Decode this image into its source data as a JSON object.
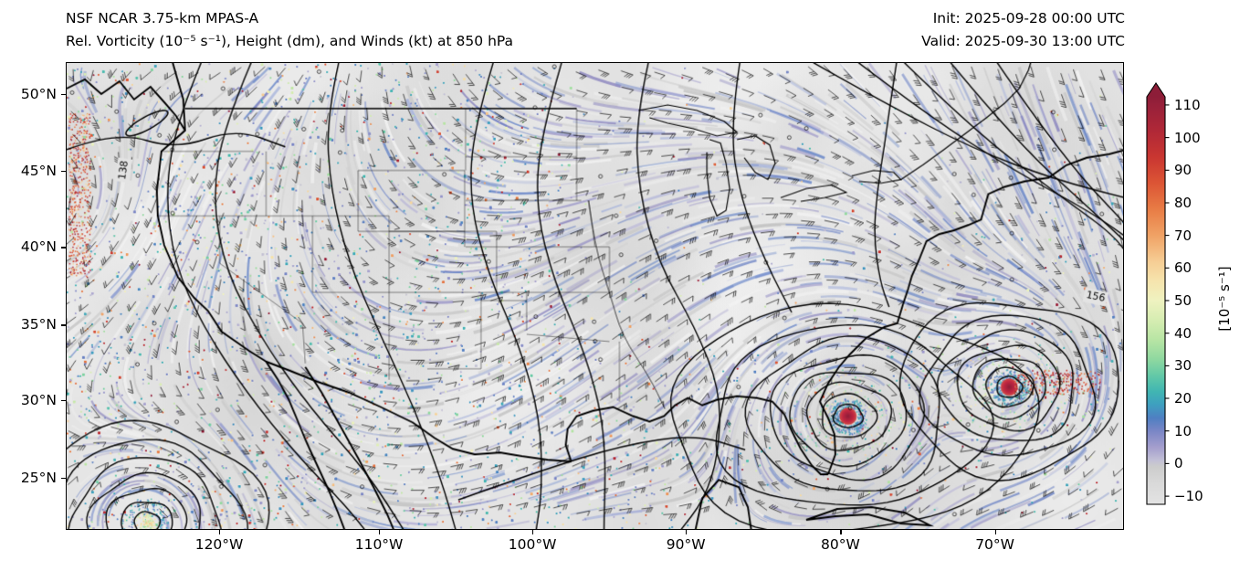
{
  "header": {
    "title": "NSF NCAR 3.75-km MPAS-A",
    "subtitle": "Rel. Vorticity (10⁻⁵ s⁻¹), Height (dm), and Winds (kt) at 850 hPa",
    "init": "Init: 2025-09-28 00:00 UTC",
    "valid": "Valid: 2025-09-30 13:00 UTC"
  },
  "chart_data": {
    "type": "heatmap",
    "title": "NSF NCAR 3.75-km MPAS-A",
    "subtitle": "Rel. Vorticity (10⁻⁵ s⁻¹), Height (dm), and Winds (kt) at 850 hPa",
    "model": "MPAS-A 3.75-km",
    "level": "850 hPa",
    "init_time": "2025-09-28 00:00 UTC",
    "valid_time": "2025-09-30 13:00 UTC",
    "fields": [
      "Relative vorticity (shaded, 10⁻⁵ s⁻¹)",
      "Geopotential height (black contours, dm)",
      "Wind barbs (kt)"
    ],
    "x_axis": {
      "label": "",
      "ticks": [
        "120°W",
        "110°W",
        "100°W",
        "90°W",
        "80°W",
        "70°W"
      ],
      "fracs": [
        0.145,
        0.296,
        0.441,
        0.586,
        0.732,
        0.878
      ]
    },
    "y_axis": {
      "label": "",
      "ticks": [
        "50°N",
        "45°N",
        "40°N",
        "35°N",
        "30°N",
        "25°N"
      ],
      "fracs": [
        0.068,
        0.232,
        0.395,
        0.561,
        0.723,
        0.889
      ]
    },
    "colorbar": {
      "label": "[10⁻⁵ s⁻¹]",
      "ticks": [
        110,
        100,
        90,
        80,
        70,
        60,
        50,
        40,
        30,
        20,
        10,
        0,
        -10
      ],
      "vmin": -12.5,
      "vmax": 112.5,
      "extend": "max",
      "stops": [
        [
          -12.5,
          "#e3e3e3"
        ],
        [
          -6,
          "#d9d9d9"
        ],
        [
          -1,
          "#cccccc"
        ],
        [
          1,
          "#c2c0d6"
        ],
        [
          5,
          "#a49ecd"
        ],
        [
          10,
          "#7a86c6"
        ],
        [
          14,
          "#4f7fc2"
        ],
        [
          18,
          "#3e9fc0"
        ],
        [
          22,
          "#40b5b2"
        ],
        [
          27,
          "#63c9a7"
        ],
        [
          32,
          "#8fd8a0"
        ],
        [
          38,
          "#b8e5a4"
        ],
        [
          44,
          "#d6edb2"
        ],
        [
          50,
          "#eff2c0"
        ],
        [
          56,
          "#f6e4ad"
        ],
        [
          62,
          "#f6cd94"
        ],
        [
          70,
          "#f0a265"
        ],
        [
          78,
          "#e87c45"
        ],
        [
          86,
          "#dc5535"
        ],
        [
          94,
          "#c93631"
        ],
        [
          102,
          "#b02837"
        ],
        [
          110,
          "#97203a"
        ],
        [
          112.5,
          "#8d1d38"
        ]
      ]
    },
    "contour_labels": [
      {
        "text": "138",
        "fx": 0.054,
        "fy": 0.23,
        "rot": -82
      },
      {
        "text": "156",
        "fx": 0.974,
        "fy": 0.502,
        "rot": 12
      }
    ],
    "features": [
      {
        "name": "intense cyclonic vortex",
        "approx_lon": "80°W",
        "approx_lat": "30°N"
      },
      {
        "name": "intense cyclonic vortex",
        "approx_lon": "70°W",
        "approx_lat": "31°N"
      },
      {
        "name": "cyclonic vortex",
        "approx_lon": "126°W",
        "approx_lat": "22°N"
      },
      {
        "name": "terrain-induced vorticity speckle",
        "region": "western US / Rockies"
      }
    ]
  }
}
